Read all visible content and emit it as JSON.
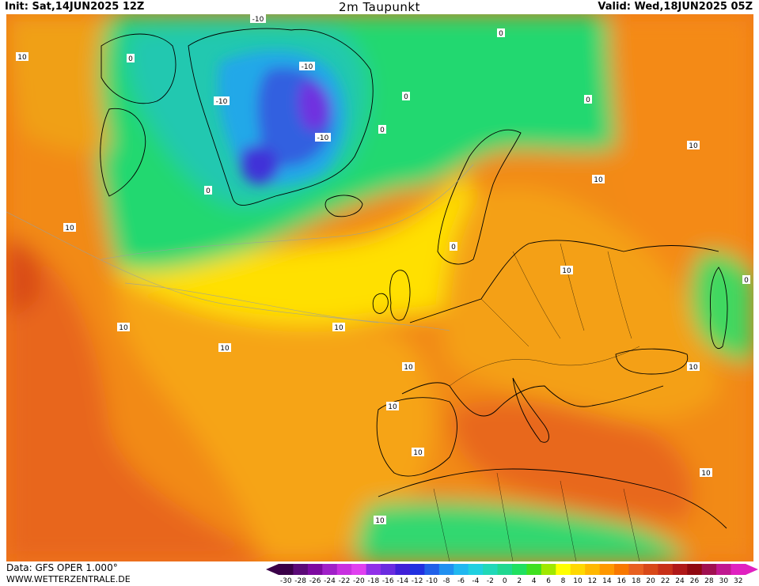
{
  "header": {
    "init": "Init: Sat,14JUN2025 12Z",
    "title": "2m Taupunkt",
    "valid": "Valid: Wed,18JUN2025 05Z"
  },
  "footer": {
    "data_source": "Data: GFS OPER 1.000°",
    "website": "WWW.WETTERZENTRALE.DE"
  },
  "colorbar": {
    "labels": [
      "-30",
      "-28",
      "-26",
      "-24",
      "-22",
      "-20",
      "-18",
      "-16",
      "-14",
      "-12",
      "-10",
      "-8",
      "-6",
      "-4",
      "-2",
      "0",
      "2",
      "4",
      "6",
      "8",
      "10",
      "12",
      "14",
      "16",
      "18",
      "20",
      "22",
      "24",
      "26",
      "28",
      "30",
      "32"
    ],
    "colors": [
      "#3a0048",
      "#5c0a78",
      "#7d0aa0",
      "#a020c8",
      "#c830e0",
      "#e040f0",
      "#9030e8",
      "#6a2ce0",
      "#4020d8",
      "#2030e0",
      "#2060e8",
      "#2090f0",
      "#20b8f0",
      "#20d0e0",
      "#20d8b8",
      "#20d890",
      "#20e060",
      "#40e020",
      "#a0e800",
      "#ffff00",
      "#ffd800",
      "#ffb800",
      "#ff9800",
      "#f87800",
      "#e86020",
      "#d84818",
      "#c83018",
      "#b01818",
      "#900810",
      "#a01050",
      "#c01890",
      "#e020c0"
    ]
  },
  "contour_labels": [
    "-10",
    "0",
    "10"
  ],
  "icon_names": [
    "colorbar-left-arrow-icon",
    "colorbar-right-arrow-icon"
  ]
}
